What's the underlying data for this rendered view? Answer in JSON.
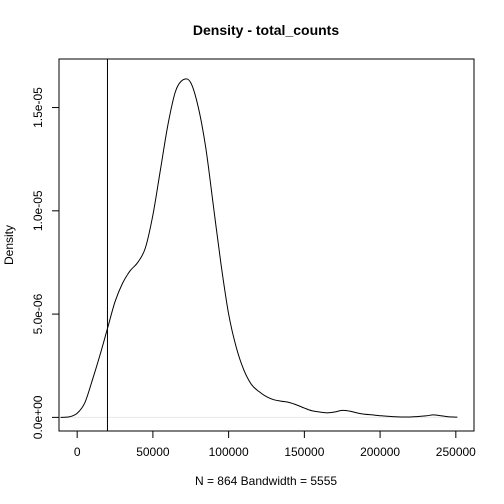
{
  "chart_data": {
    "type": "line",
    "title": "Density - total_counts",
    "xlabel": "N = 864   Bandwidth = 5555",
    "ylabel": "Density",
    "xlim": [
      -12000,
      262000
    ],
    "ylim": [
      -6.6e-07,
      1.735e-05
    ],
    "x_ticks": [
      0,
      50000,
      100000,
      150000,
      200000,
      250000
    ],
    "x_tick_labels": [
      "0",
      "50000",
      "100000",
      "150000",
      "200000",
      "250000"
    ],
    "y_ticks": [
      0,
      5e-06,
      1e-05,
      1.5e-05
    ],
    "y_tick_labels": [
      "0.0e+00",
      "5.0e-06",
      "1.0e-05",
      "1.5e-05"
    ],
    "grid": false,
    "reference_line": {
      "orientation": "vertical",
      "x": 20000
    },
    "baseline": {
      "orientation": "horizontal",
      "y": 0,
      "color": "#e8e8e8"
    },
    "series": [
      {
        "x": [
          -11000,
          -5000,
          0,
          5000,
          10000,
          15000,
          20000,
          25000,
          30000,
          35000,
          40000,
          45000,
          50000,
          55000,
          60000,
          65000,
          70000,
          75000,
          80000,
          85000,
          90000,
          95000,
          100000,
          105000,
          110000,
          115000,
          120000,
          125000,
          130000,
          135000,
          140000,
          145000,
          150000,
          155000,
          160000,
          165000,
          170000,
          175000,
          180000,
          185000,
          190000,
          195000,
          200000,
          210000,
          220000,
          230000,
          235000,
          240000,
          245000,
          251000
        ],
        "y": [
          0,
          3e-08,
          2e-07,
          7e-07,
          1.8e-06,
          3e-06,
          4.3e-06,
          5.6e-06,
          6.5e-06,
          7.1e-06,
          7.5e-06,
          8.2e-06,
          9.8e-06,
          1.2e-05,
          1.42e-05,
          1.58e-05,
          1.635e-05,
          1.62e-05,
          1.5e-05,
          1.3e-05,
          1.02e-05,
          7.4e-06,
          5e-06,
          3.4e-06,
          2.3e-06,
          1.6e-06,
          1.25e-06,
          1e-06,
          8.5e-07,
          7.8e-07,
          7.2e-07,
          6e-07,
          4.5e-07,
          3.2e-07,
          2.6e-07,
          2.2e-07,
          2.6e-07,
          3.4e-07,
          3e-07,
          2.1e-07,
          1.5e-07,
          1.2e-07,
          8e-08,
          3e-08,
          2e-08,
          7e-08,
          1.2e-07,
          8e-08,
          3e-08,
          1e-08
        ]
      }
    ],
    "colors": {
      "line": "#000000",
      "frame": "#000000",
      "baseline": "#e8e8e8"
    }
  }
}
